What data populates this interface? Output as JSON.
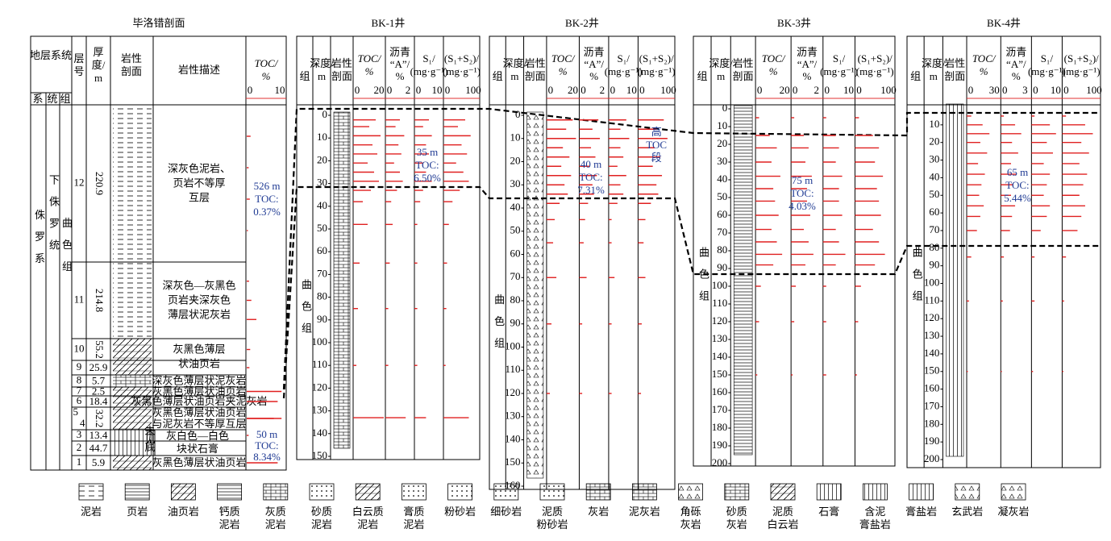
{
  "section": {
    "title": "毕洛错剖面",
    "header": {
      "strat": "地层系统",
      "system": "系",
      "series": "统",
      "formation": "组",
      "layer": [
        "层",
        "号"
      ],
      "thickness": [
        "厚",
        "度/",
        "m"
      ],
      "litho": [
        "岩性",
        "剖面"
      ],
      "desc": "岩性描述",
      "toc": [
        "TOC/",
        "%"
      ],
      "toc_ticks": [
        0,
        10
      ]
    },
    "system": "侏罗系",
    "series": "下侏罗统",
    "formation": "曲色组",
    "layers": [
      {
        "no": [
          12
        ],
        "thickness": 220.9
      },
      {
        "no": [
          11
        ],
        "thickness": 214.8
      },
      {
        "no": [
          10
        ],
        "thickness": 55.2
      },
      {
        "no": [
          9
        ],
        "thickness": 25.9
      },
      {
        "no": [
          8
        ],
        "thickness": 5.7
      },
      {
        "no": [
          7
        ],
        "thickness": 2.5
      },
      {
        "no": [
          6
        ],
        "thickness": 18.4
      },
      {
        "no": [
          5,
          4
        ],
        "thickness": 32.2
      },
      {
        "no": [
          3
        ],
        "thickness": 13.4
      },
      {
        "no": [
          2
        ],
        "thickness": 44.7
      },
      {
        "no": [
          1
        ],
        "thickness": 5.9
      }
    ],
    "descriptions": [
      [
        "深灰色泥岩、",
        "页岩不等厚",
        "互层"
      ],
      [
        "深灰色—灰黑色",
        "页岩夹深灰色",
        "薄层状泥灰岩"
      ],
      [
        "灰黑色薄层",
        "状油页岩"
      ],
      [
        "深灰色薄层状泥灰岩"
      ],
      [
        "灰黑色薄层状油页岩"
      ],
      [
        "灰黑色薄层状油页岩夹泥灰岩"
      ],
      [
        "灰黑色薄层状油页岩",
        "与泥灰岩不等厚互层"
      ],
      [
        "灰白色—白色",
        "块状石膏"
      ],
      [
        "灰黑色薄层状油页岩"
      ]
    ],
    "no_bottom": [
      "未",
      "见",
      "底"
    ],
    "toc_samples": {
      "layer": [
        12,
        12,
        12,
        12,
        11,
        11,
        11,
        10,
        9,
        7,
        6,
        5,
        4,
        3,
        1
      ],
      "values": [
        1,
        0.5,
        0.8,
        0.3,
        0.6,
        1.2,
        2.5,
        0.9,
        0.7,
        9,
        8,
        9,
        7,
        0.5,
        8
      ]
    },
    "annotations": [
      [
        "526 m",
        "TOC:",
        "0.37%"
      ],
      [
        "50 m",
        "TOC:",
        "8.34%"
      ]
    ]
  },
  "well_header": {
    "formation": "组",
    "depth": [
      "深度/",
      "m"
    ],
    "litho": [
      "岩性",
      "剖面"
    ],
    "toc": [
      "TOC/",
      "%"
    ],
    "asphalt": [
      "沥青",
      "“A”/",
      "%"
    ],
    "s1": [
      "S₁/",
      "(mg·g⁻¹)"
    ],
    "s1s2": [
      "(S₁+S₂)/",
      "(mg·g⁻¹)"
    ]
  },
  "wells": [
    {
      "name": "BK-1井",
      "formation": "曲色组",
      "depth_ticks": [
        0,
        10,
        20,
        30,
        40,
        50,
        60,
        70,
        80,
        90,
        100,
        110,
        120,
        130,
        140,
        150
      ],
      "toc_ticks": [
        0,
        20
      ],
      "asphalt_ticks": [
        0,
        2
      ],
      "s1_ticks": [
        0,
        10
      ],
      "s1s2_ticks": [
        0,
        100
      ],
      "samples": {
        "depth": [
          2,
          5,
          9,
          13,
          17,
          21,
          25,
          29,
          33,
          38,
          48,
          65,
          85,
          110,
          133
        ],
        "toc": [
          14,
          10,
          17,
          12,
          15,
          9,
          13,
          16,
          11,
          6,
          9,
          4,
          3,
          2,
          19
        ],
        "asphalt": [
          1.0,
          0.7,
          1.3,
          0.9,
          1.1,
          0.6,
          1.0,
          1.2,
          0.8,
          0.4,
          0.5,
          0.3,
          0.2,
          0.2,
          1.4
        ],
        "s1": [
          5,
          3,
          6,
          4,
          5,
          3,
          4,
          6,
          3,
          2,
          1,
          1,
          1,
          1,
          4
        ],
        "s1s2": [
          60,
          40,
          75,
          50,
          65,
          35,
          55,
          70,
          45,
          25,
          15,
          10,
          8,
          6,
          70
        ]
      },
      "annotation": [
        "35 m",
        "TOC:",
        "6.50%"
      ]
    },
    {
      "name": "BK-2井",
      "formation": "曲色组",
      "depth_ticks": [
        0,
        10,
        20,
        30,
        40,
        50,
        60,
        70,
        80,
        90,
        100,
        110,
        120,
        130,
        140,
        150,
        160
      ],
      "toc_ticks": [
        0,
        20
      ],
      "asphalt_ticks": [
        0,
        2
      ],
      "s1_ticks": [
        0,
        10
      ],
      "s1s2_ticks": [
        0,
        100
      ],
      "samples": {
        "depth": [
          2,
          6,
          10,
          14,
          18,
          22,
          26,
          30,
          34,
          38,
          45,
          55,
          70,
          90,
          120
        ],
        "toc": [
          16,
          12,
          18,
          10,
          14,
          9,
          15,
          11,
          13,
          8,
          5,
          4,
          6,
          3,
          2
        ],
        "asphalt": [
          1.3,
          0.9,
          1.4,
          0.8,
          1.1,
          0.7,
          1.2,
          0.9,
          1.0,
          0.6,
          0.4,
          0.3,
          0.5,
          0.2,
          0.2
        ],
        "s1": [
          6,
          4,
          7,
          4,
          5,
          3,
          6,
          4,
          5,
          3,
          1,
          1,
          2,
          1,
          1
        ],
        "s1s2": [
          70,
          50,
          80,
          45,
          60,
          40,
          65,
          50,
          55,
          35,
          20,
          15,
          20,
          10,
          8
        ]
      },
      "annotation": [
        "40 m",
        "TOC:",
        "7.31%"
      ],
      "label": [
        "高",
        "TOC",
        "段"
      ]
    },
    {
      "name": "BK-3井",
      "formation": "曲色组",
      "depth_ticks": [
        0,
        10,
        20,
        30,
        40,
        50,
        60,
        70,
        80,
        90,
        100,
        110,
        120,
        130,
        140,
        150,
        160,
        170,
        180,
        190,
        200
      ],
      "toc_ticks": [
        0,
        20
      ],
      "asphalt_ticks": [
        0,
        2
      ],
      "s1_ticks": [
        0,
        10
      ],
      "s1s2_ticks": [
        0,
        100
      ],
      "samples": {
        "depth": [
          5,
          15,
          22,
          30,
          38,
          45,
          52,
          60,
          68,
          75,
          82,
          88,
          100,
          120,
          150
        ],
        "toc": [
          2,
          8,
          12,
          9,
          14,
          10,
          11,
          13,
          9,
          12,
          15,
          10,
          3,
          2,
          1
        ],
        "asphalt": [
          0.2,
          0.8,
          1.1,
          0.9,
          1.3,
          1.0,
          1.0,
          1.2,
          0.8,
          1.1,
          1.4,
          0.9,
          0.3,
          0.2,
          0.1
        ],
        "s1": [
          1,
          4,
          5,
          4,
          6,
          5,
          5,
          6,
          4,
          5,
          7,
          4,
          1,
          1,
          1
        ],
        "s1s2": [
          10,
          45,
          60,
          50,
          70,
          55,
          60,
          65,
          45,
          60,
          75,
          50,
          15,
          8,
          5
        ]
      },
      "annotation": [
        "75 m",
        "TOC:",
        "4.03%"
      ]
    },
    {
      "name": "BK-4井",
      "formation": "曲色组",
      "depth_ticks": [
        10,
        20,
        30,
        40,
        50,
        60,
        70,
        80,
        90,
        100,
        110,
        120,
        130,
        140,
        150,
        160,
        170,
        180,
        190,
        200
      ],
      "toc_ticks": [
        0,
        30
      ],
      "asphalt_ticks": [
        0,
        3
      ],
      "s1_ticks": [
        0,
        10
      ],
      "s1s2_ticks": [
        0,
        100
      ],
      "samples": {
        "depth": [
          5,
          10,
          15,
          20,
          26,
          32,
          38,
          44,
          50,
          56,
          62,
          70,
          85,
          110,
          150
        ],
        "toc": [
          4,
          14,
          20,
          12,
          18,
          10,
          16,
          13,
          11,
          15,
          12,
          9,
          4,
          2,
          1
        ],
        "asphalt": [
          0.3,
          1.4,
          2.0,
          1.1,
          1.7,
          1.0,
          1.5,
          1.2,
          1.0,
          1.4,
          1.1,
          0.9,
          0.3,
          0.2,
          0.1
        ],
        "s1": [
          1,
          6,
          8,
          5,
          7,
          4,
          6,
          5,
          4,
          6,
          5,
          3,
          1,
          1,
          0.5
        ],
        "s1s2": [
          10,
          60,
          80,
          50,
          70,
          45,
          65,
          55,
          45,
          60,
          50,
          40,
          10,
          5,
          3
        ]
      },
      "annotation": [
        "65 m",
        "TOC:",
        "5.44%"
      ]
    }
  ],
  "legend": [
    [
      "泥岩"
    ],
    [
      "页岩"
    ],
    [
      "油页岩"
    ],
    [
      "钙质",
      "泥岩"
    ],
    [
      "灰质",
      "泥岩"
    ],
    [
      "砂质",
      "泥岩"
    ],
    [
      "白云质",
      "泥岩"
    ],
    [
      "膏质",
      "泥岩"
    ],
    [
      "粉砂岩"
    ],
    [
      "细砂岩"
    ],
    [
      "泥质",
      "粉砂岩"
    ],
    [
      "灰岩"
    ],
    [
      "泥灰岩"
    ],
    [
      "角砾",
      "灰岩"
    ],
    [
      "砂质",
      "灰岩"
    ],
    [
      "泥质",
      "白云岩"
    ],
    [
      "石膏"
    ],
    [
      "含泥",
      "膏盐岩"
    ],
    [
      "膏盐岩"
    ],
    [
      "玄武岩"
    ],
    [
      "凝灰岩"
    ]
  ]
}
